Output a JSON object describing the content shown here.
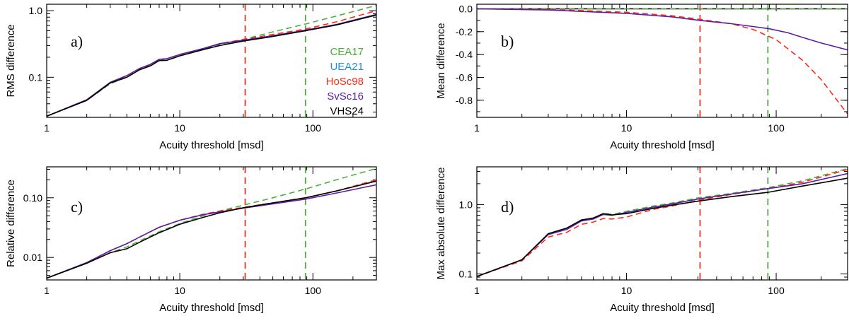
{
  "chart_data": [
    {
      "type": "line",
      "panel": "a)",
      "xscale": "log",
      "yscale": "log",
      "xlabel": "Acuity threshold [msd]",
      "ylabel": "RMS difference",
      "xlim": [
        1,
        300
      ],
      "ylim": [
        0.025,
        1.25
      ],
      "xticks": [
        {
          "v": 1,
          "label": "1"
        },
        {
          "v": 10,
          "label": "10"
        },
        {
          "v": 100,
          "label": "100"
        }
      ],
      "yticks": [
        {
          "v": 0.1,
          "label": "0.1"
        },
        {
          "v": 1.0,
          "label": "1.0"
        }
      ],
      "vlines": [
        {
          "x": 31,
          "color": "#ff2a1a"
        },
        {
          "x": 88,
          "color": "#4caf3c"
        }
      ],
      "legend": {
        "placement": "right-middle",
        "entries": [
          {
            "label": "CEA17",
            "color": "#4caf3c"
          },
          {
            "label": "UEA21",
            "color": "#1e90e0"
          },
          {
            "label": "HoSc98",
            "color": "#ff2a1a"
          },
          {
            "label": "SvSc16",
            "color": "#5a1ea0"
          },
          {
            "label": "VHS24",
            "color": "#000000"
          }
        ]
      },
      "series": [
        {
          "name": "CEA17",
          "color": "#4caf3c",
          "dash": true,
          "x": [
            1,
            2,
            3,
            4,
            5,
            6,
            7,
            8,
            10,
            15,
            20,
            30,
            50,
            88,
            150,
            300
          ],
          "values": [
            0.026,
            0.045,
            0.08,
            0.1,
            0.13,
            0.15,
            0.18,
            0.18,
            0.21,
            0.26,
            0.31,
            0.37,
            0.48,
            0.63,
            0.83,
            1.2
          ]
        },
        {
          "name": "HoSc98",
          "color": "#ff2a1a",
          "dash": true,
          "x": [
            1,
            2,
            3,
            4,
            5,
            6,
            7,
            8,
            10,
            15,
            20,
            30,
            50,
            88,
            150,
            300
          ],
          "values": [
            0.026,
            0.046,
            0.083,
            0.105,
            0.135,
            0.155,
            0.185,
            0.19,
            0.22,
            0.27,
            0.32,
            0.37,
            0.44,
            0.53,
            0.68,
            1.0
          ]
        },
        {
          "name": "SvSc16",
          "color": "#5a1ea0",
          "dash": false,
          "x": [
            1,
            2,
            3,
            4,
            5,
            6,
            7,
            8,
            10,
            15,
            20,
            30,
            50,
            88,
            150,
            300
          ],
          "values": [
            0.026,
            0.046,
            0.084,
            0.106,
            0.136,
            0.156,
            0.186,
            0.19,
            0.22,
            0.27,
            0.32,
            0.36,
            0.42,
            0.51,
            0.62,
            0.88
          ]
        },
        {
          "name": "VHS24",
          "color": "#000000",
          "dash": false,
          "x": [
            1,
            2,
            3,
            4,
            5,
            6,
            7,
            8,
            10,
            15,
            20,
            30,
            50,
            88,
            150,
            300
          ],
          "values": [
            0.026,
            0.045,
            0.082,
            0.1,
            0.13,
            0.148,
            0.178,
            0.18,
            0.21,
            0.26,
            0.3,
            0.35,
            0.41,
            0.5,
            0.61,
            0.86
          ]
        }
      ]
    },
    {
      "type": "line",
      "panel": "b)",
      "xscale": "log",
      "yscale": "linear",
      "xlabel": "Acuity threshold [msd]",
      "ylabel": "Mean difference",
      "xlim": [
        1,
        300
      ],
      "ylim": [
        -0.95,
        0.04
      ],
      "xticks": [
        {
          "v": 1,
          "label": "1"
        },
        {
          "v": 10,
          "label": "10"
        },
        {
          "v": 100,
          "label": "100"
        }
      ],
      "yticks": [
        {
          "v": 0.0,
          "label": "0.0"
        },
        {
          "v": -0.2,
          "label": "-0.2"
        },
        {
          "v": -0.4,
          "label": "-0.4"
        },
        {
          "v": -0.6,
          "label": "-0.6"
        },
        {
          "v": -0.8,
          "label": "-0.8"
        }
      ],
      "vlines": [
        {
          "x": 31,
          "color": "#ff2a1a"
        },
        {
          "x": 88,
          "color": "#4caf3c"
        }
      ],
      "series": [
        {
          "name": "VHS24",
          "color": "#000000",
          "dash": false,
          "x": [
            1,
            300
          ],
          "values": [
            0.0,
            0.0
          ]
        },
        {
          "name": "CEA17",
          "color": "#4caf3c",
          "dash": true,
          "x": [
            1,
            300
          ],
          "values": [
            0.0,
            0.0
          ]
        },
        {
          "name": "HoSc98",
          "color": "#ff2a1a",
          "dash": true,
          "x": [
            1,
            3,
            10,
            20,
            30,
            50,
            70,
            100,
            150,
            200,
            300
          ],
          "values": [
            0.0,
            -0.005,
            -0.03,
            -0.06,
            -0.09,
            -0.13,
            -0.18,
            -0.27,
            -0.45,
            -0.62,
            -0.92
          ]
        },
        {
          "name": "SvSc16",
          "color": "#5a1ea0",
          "dash": false,
          "x": [
            1,
            3,
            10,
            20,
            30,
            50,
            70,
            90,
            120,
            150,
            200,
            300
          ],
          "values": [
            0.0,
            -0.01,
            -0.04,
            -0.07,
            -0.1,
            -0.13,
            -0.155,
            -0.175,
            -0.21,
            -0.25,
            -0.3,
            -0.36
          ]
        }
      ]
    },
    {
      "type": "line",
      "panel": "c)",
      "xscale": "log",
      "yscale": "log",
      "xlabel": "Acuity threshold [msd]",
      "ylabel": "Relative difference",
      "xlim": [
        1,
        300
      ],
      "ylim": [
        0.0042,
        0.33
      ],
      "xticks": [
        {
          "v": 1,
          "label": "1"
        },
        {
          "v": 10,
          "label": "10"
        },
        {
          "v": 100,
          "label": "100"
        }
      ],
      "yticks": [
        {
          "v": 0.01,
          "label": "0.01"
        },
        {
          "v": 0.1,
          "label": "0.10"
        }
      ],
      "vlines": [
        {
          "x": 31,
          "color": "#ff2a1a"
        },
        {
          "x": 88,
          "color": "#4caf3c"
        }
      ],
      "series": [
        {
          "name": "CEA17",
          "color": "#4caf3c",
          "dash": true,
          "x": [
            1,
            2,
            3,
            4,
            5,
            7,
            10,
            15,
            20,
            30,
            50,
            88,
            150,
            300
          ],
          "values": [
            0.0045,
            0.008,
            0.012,
            0.015,
            0.019,
            0.027,
            0.037,
            0.05,
            0.06,
            0.075,
            0.1,
            0.14,
            0.2,
            0.31
          ]
        },
        {
          "name": "HoSc98",
          "color": "#ff2a1a",
          "dash": true,
          "x": [
            1,
            2,
            3,
            4,
            5,
            7,
            10,
            15,
            20,
            30,
            50,
            88,
            150,
            300
          ],
          "values": [
            0.0045,
            0.0082,
            0.013,
            0.017,
            0.022,
            0.032,
            0.042,
            0.053,
            0.06,
            0.069,
            0.082,
            0.1,
            0.13,
            0.2
          ]
        },
        {
          "name": "SvSc16",
          "color": "#5a1ea0",
          "dash": false,
          "x": [
            1,
            2,
            3,
            4,
            5,
            7,
            10,
            15,
            20,
            30,
            50,
            88,
            150,
            300
          ],
          "values": [
            0.0045,
            0.0082,
            0.013,
            0.017,
            0.022,
            0.032,
            0.042,
            0.052,
            0.058,
            0.067,
            0.079,
            0.095,
            0.12,
            0.165
          ]
        },
        {
          "name": "VHS24",
          "color": "#000000",
          "dash": false,
          "x": [
            1,
            2,
            3,
            4,
            5,
            7,
            10,
            15,
            20,
            30,
            50,
            88,
            150,
            300
          ],
          "values": [
            0.0045,
            0.008,
            0.012,
            0.014,
            0.018,
            0.026,
            0.036,
            0.047,
            0.056,
            0.068,
            0.082,
            0.1,
            0.13,
            0.19
          ]
        }
      ]
    },
    {
      "type": "line",
      "panel": "d)",
      "xscale": "log",
      "yscale": "log",
      "xlabel": "Acuity threshold [msd]",
      "ylabel": "Max absolute difference",
      "xlim": [
        1,
        300
      ],
      "ylim": [
        0.082,
        3.5
      ],
      "xticks": [
        {
          "v": 1,
          "label": "1"
        },
        {
          "v": 10,
          "label": "10"
        },
        {
          "v": 100,
          "label": "100"
        }
      ],
      "yticks": [
        {
          "v": 0.1,
          "label": "0.1"
        },
        {
          "v": 1.0,
          "label": "1.0"
        }
      ],
      "vlines": [
        {
          "x": 31,
          "color": "#ff2a1a"
        },
        {
          "x": 88,
          "color": "#4caf3c"
        }
      ],
      "series": [
        {
          "name": "CEA17",
          "color": "#4caf3c",
          "dash": true,
          "x": [
            1,
            2,
            3,
            4,
            5,
            6,
            7,
            8,
            10,
            15,
            20,
            30,
            50,
            88,
            150,
            300
          ],
          "values": [
            0.092,
            0.16,
            0.38,
            0.45,
            0.6,
            0.63,
            0.75,
            0.72,
            0.8,
            0.95,
            1.05,
            1.25,
            1.45,
            1.75,
            2.2,
            3.3
          ]
        },
        {
          "name": "HoSc98",
          "color": "#ff2a1a",
          "dash": true,
          "x": [
            1,
            2,
            3,
            4,
            5,
            6,
            7,
            8,
            10,
            15,
            20,
            30,
            50,
            88,
            150,
            300
          ],
          "values": [
            0.092,
            0.155,
            0.34,
            0.4,
            0.52,
            0.56,
            0.63,
            0.62,
            0.66,
            0.85,
            0.95,
            1.15,
            1.4,
            1.7,
            2.1,
            3.2
          ]
        },
        {
          "name": "SvSc16",
          "color": "#5a1ea0",
          "dash": false,
          "x": [
            1,
            2,
            3,
            4,
            5,
            6,
            7,
            8,
            10,
            15,
            20,
            30,
            50,
            88,
            150,
            300
          ],
          "values": [
            0.092,
            0.16,
            0.37,
            0.44,
            0.58,
            0.62,
            0.72,
            0.7,
            0.77,
            0.92,
            1.02,
            1.2,
            1.42,
            1.7,
            2.0,
            2.8
          ]
        },
        {
          "name": "VHS24",
          "color": "#000000",
          "dash": false,
          "x": [
            1,
            2,
            3,
            4,
            5,
            6,
            7,
            8,
            10,
            15,
            20,
            30,
            50,
            88,
            150,
            300
          ],
          "values": [
            0.092,
            0.16,
            0.38,
            0.46,
            0.6,
            0.64,
            0.74,
            0.71,
            0.74,
            0.88,
            0.98,
            1.12,
            1.3,
            1.5,
            1.85,
            2.4
          ]
        }
      ]
    }
  ]
}
